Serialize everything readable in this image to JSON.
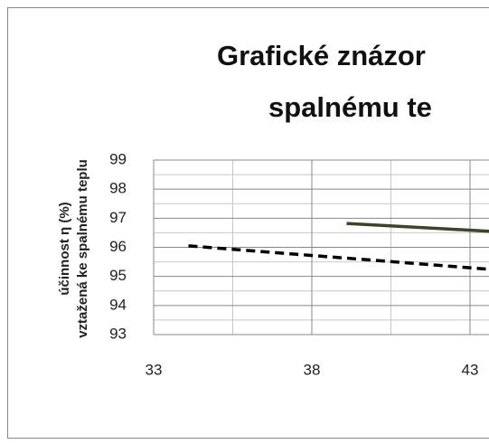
{
  "chart_data": {
    "type": "line",
    "title": [
      "Grafické znázor",
      "spalnému te"
    ],
    "ylabel": [
      "účinnost η (%)",
      "vztažená ke spalnému teplu"
    ],
    "series": [
      {
        "x": [
          39.1,
          44.5
        ],
        "values": [
          96.82,
          96.5
        ],
        "color": "#3a4527",
        "dash": false
      },
      {
        "x": [
          34.1,
          44.5
        ],
        "values": [
          96.05,
          95.17
        ],
        "color": "#000000",
        "dash": true
      }
    ],
    "xlim": [
      33,
      48
    ],
    "xticks": [
      33,
      38,
      43
    ],
    "ylim": [
      93,
      99
    ],
    "yticks": [
      93,
      94,
      95,
      96,
      97,
      98,
      99
    ],
    "grid": true
  }
}
